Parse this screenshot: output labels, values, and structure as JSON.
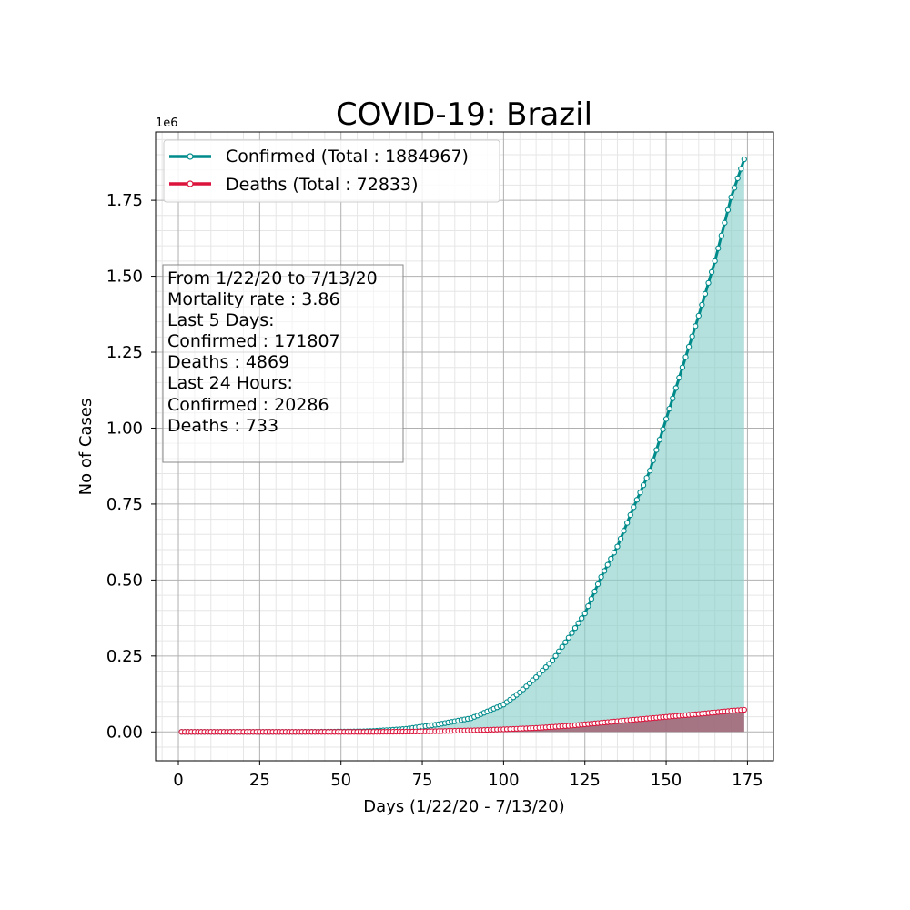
{
  "chart_data": {
    "type": "line",
    "title": "COVID-19: Brazil",
    "xlabel": "Days (1/22/20 - 7/13/20)",
    "ylabel": "No of Cases",
    "y_offset_label": "1e6",
    "xlim": [
      -7,
      183
    ],
    "ylim": [
      -0.095,
      1.975
    ],
    "x_ticks": [
      0,
      25,
      50,
      75,
      100,
      125,
      150,
      175
    ],
    "x_tick_labels": [
      "0",
      "25",
      "50",
      "75",
      "100",
      "125",
      "150",
      "175"
    ],
    "y_ticks": [
      0,
      0.25,
      0.5,
      0.75,
      1.0,
      1.25,
      1.5,
      1.75
    ],
    "y_tick_labels": [
      "0.00",
      "0.25",
      "0.50",
      "0.75",
      "1.00",
      "1.25",
      "1.50",
      "1.75"
    ],
    "y_units_multiplier": 1000000,
    "grid": true,
    "minor_grid": true,
    "legend_position": "top-left",
    "series": [
      {
        "name": "Confirmed (Total : 1884967)",
        "color": "#008b8b",
        "fill_color": "#8ccfcb",
        "knots": [
          [
            1,
            0
          ],
          [
            36,
            3e-05
          ],
          [
            56,
            0.0015
          ],
          [
            60,
            0.003
          ],
          [
            70,
            0.01
          ],
          [
            80,
            0.025
          ],
          [
            90,
            0.045
          ],
          [
            100,
            0.09
          ],
          [
            105,
            0.13
          ],
          [
            110,
            0.18
          ],
          [
            115,
            0.235
          ],
          [
            120,
            0.31
          ],
          [
            125,
            0.39
          ],
          [
            130,
            0.51
          ],
          [
            135,
            0.61
          ],
          [
            140,
            0.74
          ],
          [
            145,
            0.86
          ],
          [
            150,
            1.03
          ],
          [
            155,
            1.2
          ],
          [
            160,
            1.37
          ],
          [
            165,
            1.55
          ],
          [
            170,
            1.76
          ],
          [
            174,
            1.884967
          ]
        ]
      },
      {
        "name": "Deaths (Total : 72833)",
        "color": "#dc143c",
        "fill_color": "#a35a6e",
        "knots": [
          [
            1,
            0
          ],
          [
            50,
            0
          ],
          [
            60,
            0.0002
          ],
          [
            70,
            0.0008
          ],
          [
            80,
            0.0025
          ],
          [
            90,
            0.005
          ],
          [
            100,
            0.0085
          ],
          [
            110,
            0.013
          ],
          [
            120,
            0.02
          ],
          [
            130,
            0.03
          ],
          [
            140,
            0.04
          ],
          [
            150,
            0.0495
          ],
          [
            160,
            0.059
          ],
          [
            170,
            0.0695
          ],
          [
            174,
            0.072833
          ]
        ]
      }
    ],
    "x_count": 174
  },
  "info_box": {
    "lines": [
      "From 1/22/20 to 7/13/20",
      "Mortality rate : 3.86",
      "Last 5 Days:",
      "Confirmed : 171807",
      "Deaths : 4869",
      "Last 24 Hours:",
      "Confirmed : 20286",
      "Deaths : 733"
    ]
  }
}
